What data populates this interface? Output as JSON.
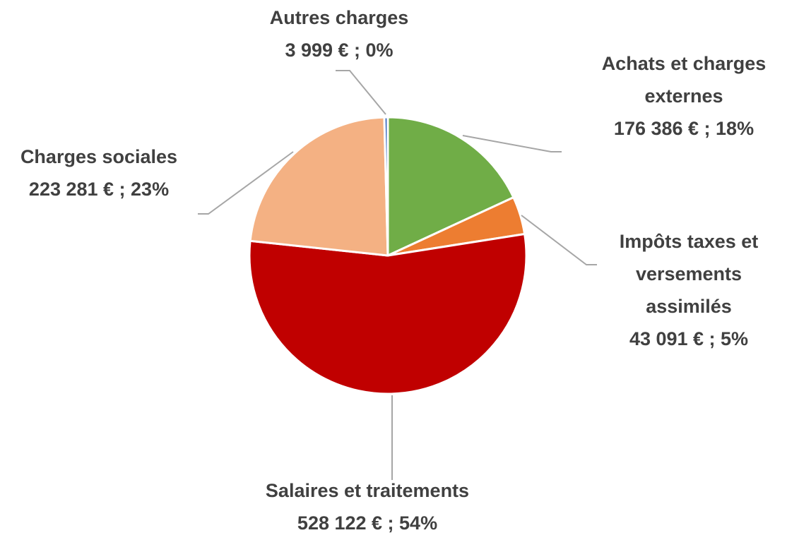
{
  "chart_data": {
    "type": "pie",
    "categories": [
      "Achats et charges externes",
      "Impôts taxes et versements assimilés",
      "Salaires et traitements",
      "Charges sociales",
      "Autres charges"
    ],
    "values": [
      176386,
      43091,
      528122,
      223281,
      3999
    ],
    "value_labels": [
      "176 386 € ; 18%",
      "43 091 € ; 5%",
      "528 122 € ; 54%",
      "223 281 € ; 23%",
      "3 999 € ; 0%"
    ],
    "colors": [
      "#70ad47",
      "#ed7d31",
      "#c00000",
      "#f4b183",
      "#4472c4"
    ]
  }
}
